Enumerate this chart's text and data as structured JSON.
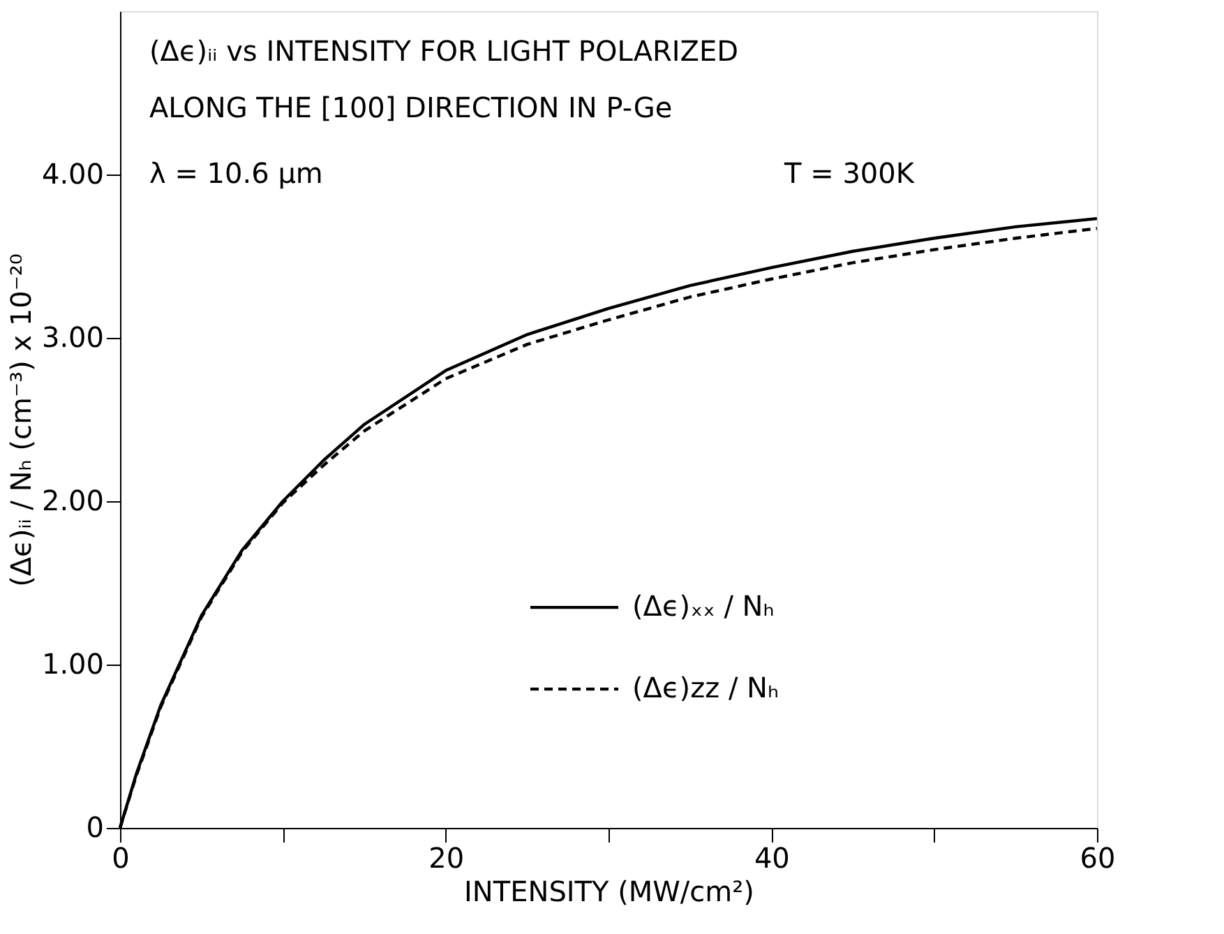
{
  "chart_data": {
    "type": "line",
    "xlabel": "INTENSITY (MW/cm²)",
    "ylabel": "(Δϵ)ᵢᵢ / Nₕ (cm⁻³) x 10⁻²⁰",
    "annotations": [
      "(Δϵ)ᵢᵢ vs INTENSITY FOR LIGHT POLARIZED",
      "ALONG THE [100] DIRECTION IN P-Ge",
      "λ = 10.6 μm",
      "T = 300K"
    ],
    "x": [
      0,
      1,
      2.5,
      5,
      7.5,
      10,
      12.5,
      15,
      20,
      25,
      30,
      35,
      40,
      45,
      50,
      55,
      60
    ],
    "series": [
      {
        "name": "(Δϵ)ₓₓ / Nₕ",
        "color": "#000000",
        "line_style": "solid",
        "values": [
          0,
          0.33,
          0.75,
          1.3,
          1.7,
          2.0,
          2.25,
          2.47,
          2.8,
          3.02,
          3.18,
          3.32,
          3.43,
          3.53,
          3.61,
          3.68,
          3.73
        ]
      },
      {
        "name": "(Δϵ)zz / Nₕ",
        "color": "#000000",
        "line_style": "dashed",
        "values": [
          0,
          0.32,
          0.74,
          1.29,
          1.69,
          1.99,
          2.22,
          2.43,
          2.75,
          2.96,
          3.11,
          3.25,
          3.36,
          3.46,
          3.54,
          3.61,
          3.67
        ]
      }
    ],
    "xlim": [
      0,
      60
    ],
    "ylim": [
      0,
      5
    ],
    "xticks": [
      0,
      {
        "value": 10,
        "label": null
      },
      20,
      {
        "value": 30,
        "label": null
      },
      40,
      {
        "value": 50,
        "label": null
      },
      60
    ],
    "yticks": [
      {
        "value": 0,
        "label": "0"
      },
      {
        "value": 1,
        "label": "1.00"
      },
      {
        "value": 2,
        "label": "2.00"
      },
      {
        "value": 3,
        "label": "3.00"
      },
      {
        "value": 4,
        "label": "4.00"
      }
    ],
    "grid": false,
    "legend": "bottom right",
    "marker": "none"
  }
}
